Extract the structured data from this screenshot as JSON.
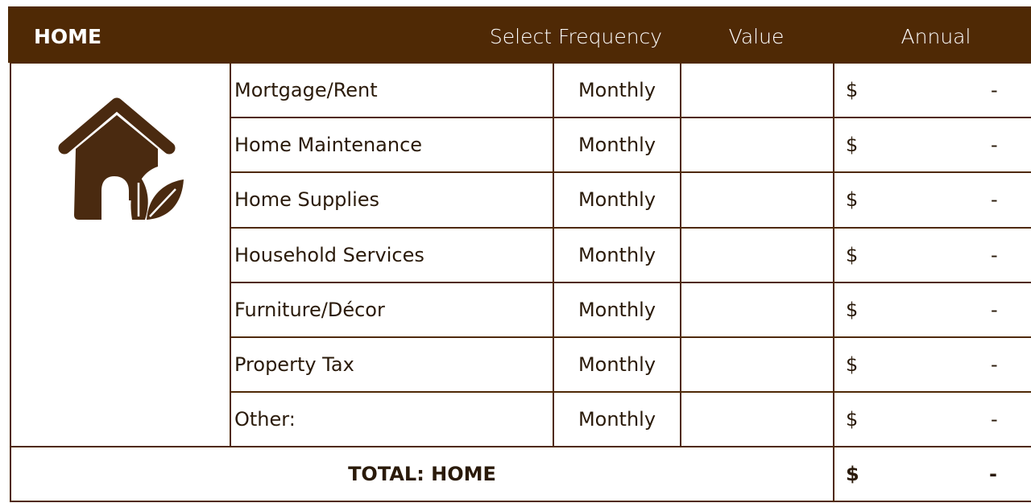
{
  "header": {
    "title": "HOME",
    "columns": [
      "Select Frequency",
      "Value",
      "Annual"
    ]
  },
  "rows": [
    {
      "label": "Mortgage/Rent",
      "frequency": "Monthly",
      "currency": "$",
      "annual": "-"
    },
    {
      "label": "Home Maintenance",
      "frequency": "Monthly",
      "currency": "$",
      "annual": "-"
    },
    {
      "label": "Home Supplies",
      "frequency": "Monthly",
      "currency": "$",
      "annual": "-"
    },
    {
      "label": "Household Services",
      "frequency": "Monthly",
      "currency": "$",
      "annual": "-"
    },
    {
      "label": "Furniture/Décor",
      "frequency": "Monthly",
      "currency": "$",
      "annual": "-"
    },
    {
      "label": "Property Tax",
      "frequency": "Monthly",
      "currency": "$",
      "annual": "-"
    },
    {
      "label": "Other:",
      "frequency": "Monthly",
      "currency": "$",
      "annual": "-"
    }
  ],
  "total": {
    "label": "TOTAL: HOME",
    "currency": "$",
    "annual": "-"
  }
}
